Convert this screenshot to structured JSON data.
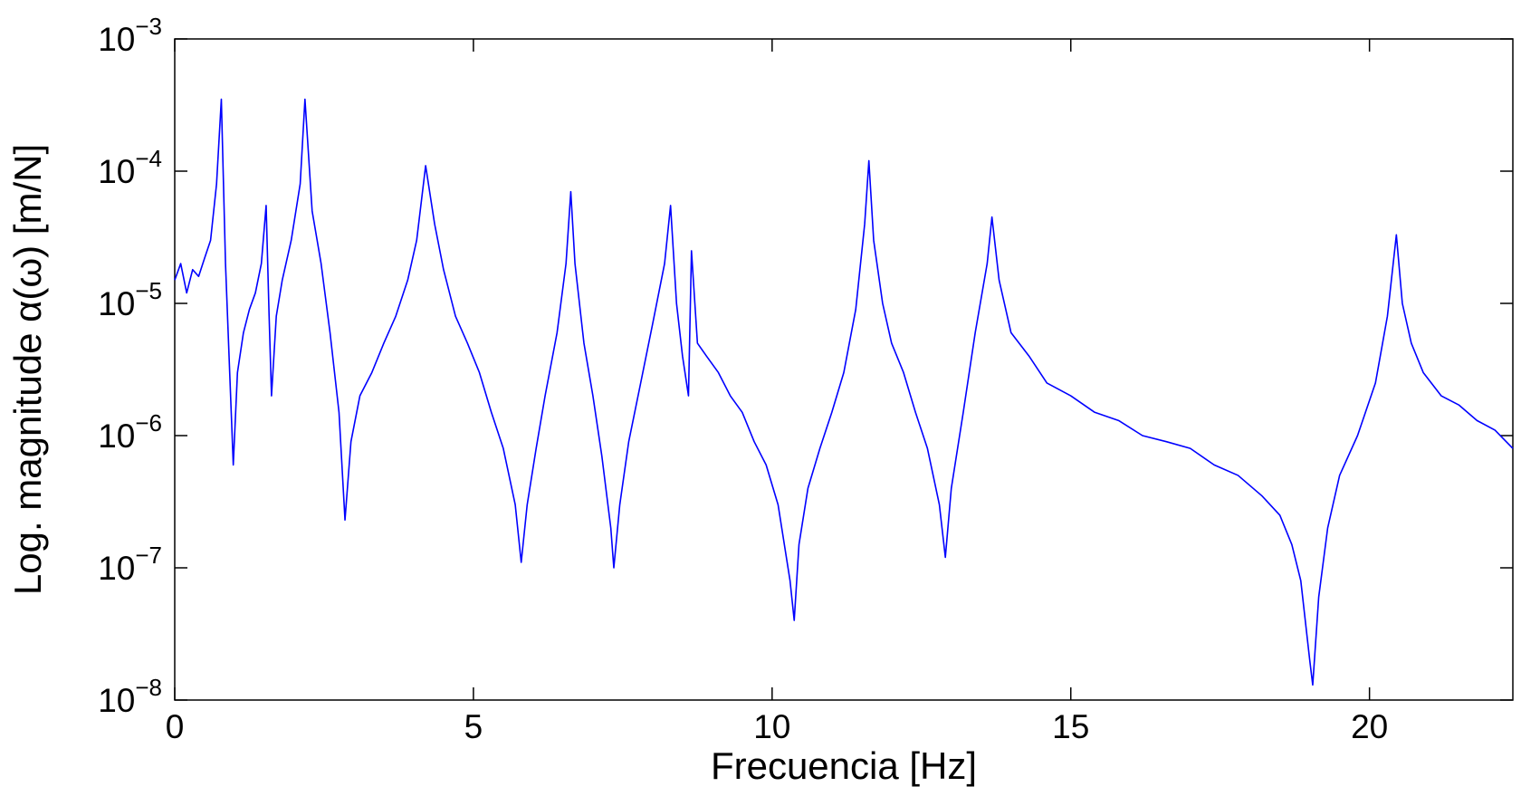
{
  "chart_data": {
    "type": "line",
    "x_label": "Frecuencia [Hz]",
    "y_label": "Log. magnitude α(ω) [m/N]",
    "color": "#0000ff",
    "ylog": true,
    "xlim": [
      0,
      22.4
    ],
    "ylim": [
      1e-08,
      0.001
    ],
    "xticks": [
      0,
      5,
      10,
      15,
      20
    ],
    "yticks": [
      {
        "value": 1e-08,
        "label": "10",
        "exponent": "−8"
      },
      {
        "value": 1e-07,
        "label": "10",
        "exponent": "−7"
      },
      {
        "value": 1e-06,
        "label": "10",
        "exponent": "−6"
      },
      {
        "value": 1e-05,
        "label": "10",
        "exponent": "−5"
      },
      {
        "value": 0.0001,
        "label": "10",
        "exponent": "−4"
      },
      {
        "value": 0.001,
        "label": "10",
        "exponent": "−3"
      }
    ],
    "x": [
      0.0,
      0.1,
      0.2,
      0.3,
      0.4,
      0.5,
      0.6,
      0.7,
      0.78,
      0.85,
      0.92,
      0.98,
      1.05,
      1.15,
      1.25,
      1.35,
      1.45,
      1.53,
      1.58,
      1.62,
      1.7,
      1.8,
      1.95,
      2.1,
      2.18,
      2.3,
      2.45,
      2.6,
      2.75,
      2.85,
      2.95,
      3.1,
      3.3,
      3.5,
      3.7,
      3.9,
      4.05,
      4.2,
      4.35,
      4.5,
      4.7,
      4.9,
      5.1,
      5.3,
      5.5,
      5.7,
      5.8,
      5.9,
      6.05,
      6.2,
      6.4,
      6.55,
      6.63,
      6.7,
      6.85,
      7.0,
      7.15,
      7.3,
      7.35,
      7.45,
      7.6,
      7.8,
      8.0,
      8.2,
      8.3,
      8.4,
      8.5,
      8.6,
      8.65,
      8.75,
      8.9,
      9.1,
      9.3,
      9.5,
      9.7,
      9.9,
      10.1,
      10.3,
      10.37,
      10.45,
      10.6,
      10.8,
      11.0,
      11.2,
      11.4,
      11.55,
      11.62,
      11.7,
      11.85,
      12.0,
      12.2,
      12.4,
      12.6,
      12.8,
      12.9,
      13.0,
      13.2,
      13.4,
      13.6,
      13.68,
      13.8,
      14.0,
      14.3,
      14.6,
      15.0,
      15.4,
      15.8,
      16.2,
      16.6,
      17.0,
      17.4,
      17.8,
      18.2,
      18.5,
      18.7,
      18.85,
      19.0,
      19.05,
      19.15,
      19.3,
      19.5,
      19.8,
      20.1,
      20.3,
      20.45,
      20.55,
      20.7,
      20.9,
      21.2,
      21.5,
      21.8,
      22.1,
      22.4
    ],
    "values": [
      1.5e-05,
      2e-05,
      1.2e-05,
      1.8e-05,
      1.6e-05,
      2.2e-05,
      3e-05,
      8e-05,
      0.00035,
      2e-05,
      3e-06,
      6e-07,
      3e-06,
      6e-06,
      9e-06,
      1.2e-05,
      2e-05,
      5.5e-05,
      8e-06,
      2e-06,
      8e-06,
      1.5e-05,
      3e-05,
      8e-05,
      0.00035,
      5e-05,
      2e-05,
      6e-06,
      1.5e-06,
      2.3e-07,
      9e-07,
      2e-06,
      3e-06,
      5e-06,
      8e-06,
      1.5e-05,
      3e-05,
      0.00011,
      4e-05,
      1.8e-05,
      8e-06,
      5e-06,
      3e-06,
      1.5e-06,
      8e-07,
      3e-07,
      1.1e-07,
      3e-07,
      8e-07,
      2e-06,
      6e-06,
      2e-05,
      7e-05,
      2e-05,
      5e-06,
      2e-06,
      7e-07,
      2e-07,
      1e-07,
      3e-07,
      9e-07,
      2.5e-06,
      7e-06,
      2e-05,
      5.5e-05,
      1e-05,
      4e-06,
      2e-06,
      2.5e-05,
      5e-06,
      4e-06,
      3e-06,
      2e-06,
      1.5e-06,
      9e-07,
      6e-07,
      3e-07,
      8e-08,
      4e-08,
      1.5e-07,
      4e-07,
      8e-07,
      1.5e-06,
      3e-06,
      9e-06,
      4e-05,
      0.00012,
      3e-05,
      1e-05,
      5e-06,
      3e-06,
      1.5e-06,
      8e-07,
      3e-07,
      1.2e-07,
      4e-07,
      1.5e-06,
      6e-06,
      2e-05,
      4.5e-05,
      1.5e-05,
      6e-06,
      4e-06,
      2.5e-06,
      2e-06,
      1.5e-06,
      1.3e-06,
      1e-06,
      9e-07,
      8e-07,
      6e-07,
      5e-07,
      3.5e-07,
      2.5e-07,
      1.5e-07,
      8e-08,
      2e-08,
      1.3e-08,
      6e-08,
      2e-07,
      5e-07,
      1e-06,
      2.5e-06,
      8e-06,
      3.3e-05,
      1e-05,
      5e-06,
      3e-06,
      2e-06,
      1.7e-06,
      1.3e-06,
      1.1e-06,
      8e-07
    ]
  }
}
